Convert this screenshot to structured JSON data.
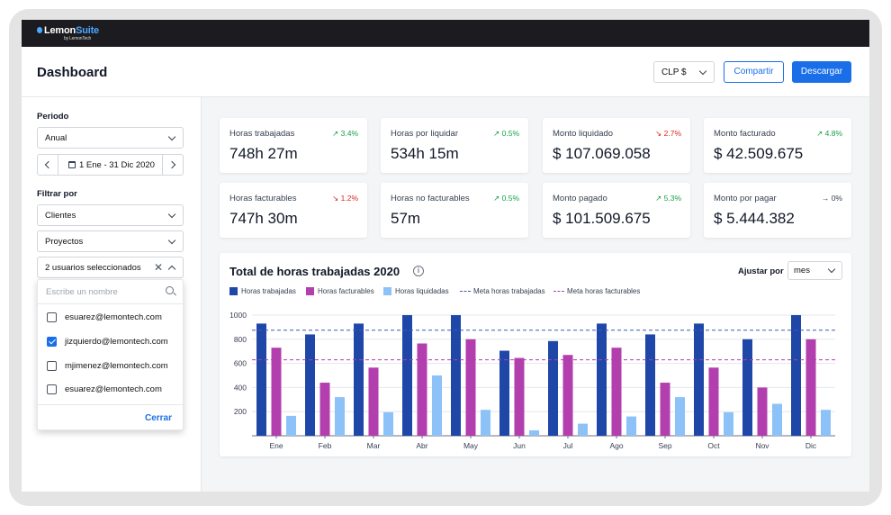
{
  "app": {
    "logo": {
      "brand": "Lemon",
      "suite": "Suite",
      "by": "by LemonTech"
    },
    "title": "Dashboard",
    "currency": "CLP $",
    "share_label": "Compartir",
    "download_label": "Descargar"
  },
  "sidebar": {
    "period_label": "Periodo",
    "period_value": "Anual",
    "date_range": "1 Ene - 31 Dic 2020",
    "filter_label": "Filtrar por",
    "filter_clients": "Clientes",
    "filter_projects": "Proyectos",
    "users_selected": "2 usuarios seleccionados",
    "search_placeholder": "Escribe un nombre",
    "users": [
      {
        "email": "esuarez@lemontech.com",
        "checked": false
      },
      {
        "email": "jizquierdo@lemontech.com",
        "checked": true
      },
      {
        "email": "mjimenez@lemontech.com",
        "checked": false
      },
      {
        "email": "esuarez@lemontech.com",
        "checked": false
      }
    ],
    "close_label": "Cerrar"
  },
  "kpis": [
    {
      "label": "Horas trabajadas",
      "value": "748h 27m",
      "trend": "3.4%",
      "direction": "up"
    },
    {
      "label": "Horas por liquidar",
      "value": "534h 15m",
      "trend": "0.5%",
      "direction": "up"
    },
    {
      "label": "Monto liquidado",
      "value": "$ 107.069.058",
      "trend": "2.7%",
      "direction": "down"
    },
    {
      "label": "Monto facturado",
      "value": "$ 42.509.675",
      "trend": "4.8%",
      "direction": "up"
    },
    {
      "label": "Horas facturables",
      "value": "747h 30m",
      "trend": "1.2%",
      "direction": "down"
    },
    {
      "label": "Horas no facturables",
      "value": "57m",
      "trend": "0.5%",
      "direction": "up"
    },
    {
      "label": "Monto pagado",
      "value": "$ 101.509.675",
      "trend": "5.3%",
      "direction": "up"
    },
    {
      "label": "Monto por pagar",
      "value": "$ 5.444.382",
      "trend": "0%",
      "direction": "flat"
    }
  ],
  "chart_panel": {
    "adjust_label": "Ajustar por",
    "adjust_value": "mes"
  },
  "colors": {
    "worked": "#1f47a8",
    "billable": "#b23fad",
    "liquidated": "#8cc2f7",
    "meta_worked": "#3b5bb5",
    "meta_billable": "#b23fad",
    "accent": "#1a6fe8"
  },
  "chart_data": {
    "type": "bar",
    "title": "Total de horas trabajadas 2020",
    "categories": [
      "Ene",
      "Feb",
      "Mar",
      "Abr",
      "May",
      "Jun",
      "Jul",
      "Ago",
      "Sep",
      "Oct",
      "Nov",
      "Dic"
    ],
    "series": [
      {
        "name": "Horas trabajadas",
        "values": [
          930,
          840,
          930,
          1000,
          1000,
          705,
          785,
          930,
          840,
          930,
          800,
          1000
        ]
      },
      {
        "name": "Horas facturables",
        "values": [
          730,
          440,
          565,
          765,
          800,
          645,
          670,
          730,
          440,
          565,
          400,
          800
        ]
      },
      {
        "name": "Horas liquidadas",
        "values": [
          165,
          320,
          195,
          500,
          215,
          45,
          100,
          160,
          320,
          195,
          265,
          215
        ]
      }
    ],
    "reference_lines": [
      {
        "name": "Meta horas trabajadas",
        "value": 875
      },
      {
        "name": "Meta horas facturables",
        "value": 630
      }
    ],
    "yticks": [
      200,
      400,
      600,
      800,
      1000
    ],
    "ylim": [
      0,
      1000
    ],
    "xlabel": "",
    "ylabel": "",
    "grid": true,
    "legend": "top-left"
  }
}
